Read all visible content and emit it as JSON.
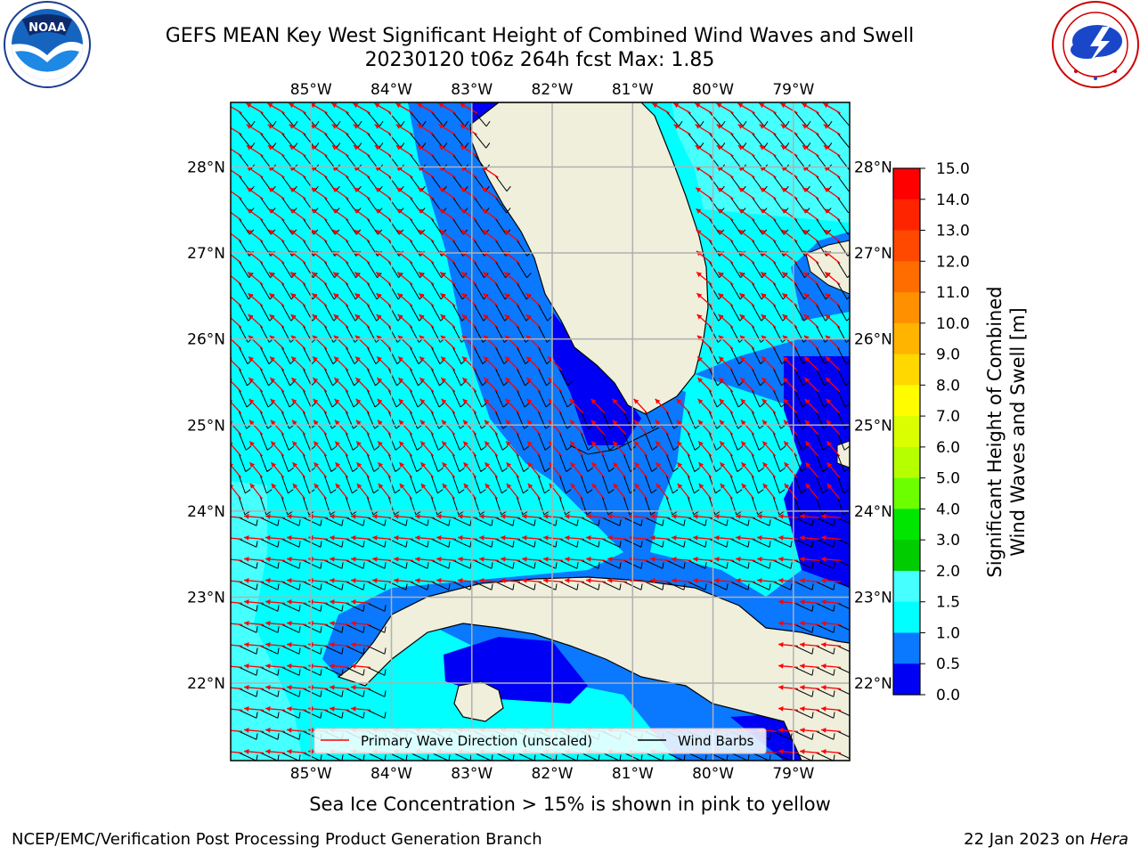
{
  "header": {
    "title_line1": "GEFS MEAN Key West Significant Height of Combined Wind Waves and Swell",
    "title_line2": "20230120 t06z 264h fcst   Max: 1.85"
  },
  "logos": {
    "left": {
      "icon": "noaa-logo",
      "text": "NOAA",
      "ring_text": "NATIONAL OCEANIC AND ATMOSPHERIC ADMINISTRATION · U.S. DEPARTMENT OF COMMERCE"
    },
    "right": {
      "icon": "national-weather-service-logo",
      "ring_text": "NATIONAL WEATHER SERVICE"
    }
  },
  "map": {
    "lon_labels": [
      "85°W",
      "84°W",
      "83°W",
      "82°W",
      "81°W",
      "80°W",
      "79°W"
    ],
    "lat_labels": [
      "28°N",
      "27°N",
      "26°N",
      "25°N",
      "24°N",
      "23°N",
      "22°N"
    ],
    "lon_range": [
      -86.0,
      -78.3
    ],
    "lat_range": [
      21.1,
      28.75
    ],
    "lon_ticks": [
      -85,
      -84,
      -83,
      -82,
      -81,
      -80,
      -79
    ],
    "lat_ticks": [
      28,
      27,
      26,
      25,
      24,
      23,
      22
    ],
    "land_color": "#efefdc",
    "ocean_colors": {
      "0.0-0.5": "#0000f5",
      "0.5-1.0": "#0a78ff",
      "1.0-1.5": "#00ffff",
      "1.5-2.0": "#46ffff"
    },
    "arrow_color": "#ff0000",
    "barb_color": "#000000",
    "grid": true
  },
  "legend": {
    "wave_label": "Primary Wave Direction (unscaled)",
    "barb_label": "Wind Barbs"
  },
  "colorbar": {
    "label_line1": "Significant Height of Combined",
    "label_line2": "Wind Waves and Swell [m]",
    "ticks": [
      "15.0",
      "14.0",
      "13.0",
      "12.0",
      "11.0",
      "10.0",
      "9.0",
      "8.0",
      "7.0",
      "6.0",
      "5.0",
      "4.0",
      "3.0",
      "2.0",
      "1.5",
      "1.0",
      "0.5",
      "0.0"
    ],
    "colors": [
      "#ff0000",
      "#ff2400",
      "#ff4800",
      "#ff6c00",
      "#ff9000",
      "#ffb400",
      "#ffd800",
      "#fffc00",
      "#daff00",
      "#b6ff00",
      "#6cff00",
      "#00e600",
      "#00cc00",
      "#44ff88",
      "#aaffff",
      "#46ffff",
      "#00ffff",
      "#0a78ff",
      "#0000f5"
    ]
  },
  "note": "Sea Ice Concentration > 15% is shown in pink to yellow",
  "footer": {
    "left": "NCEP/EMC/Verification Post Processing Product Generation Branch",
    "right_prefix": "22 Jan 2023 on ",
    "right_host": "Hera"
  }
}
